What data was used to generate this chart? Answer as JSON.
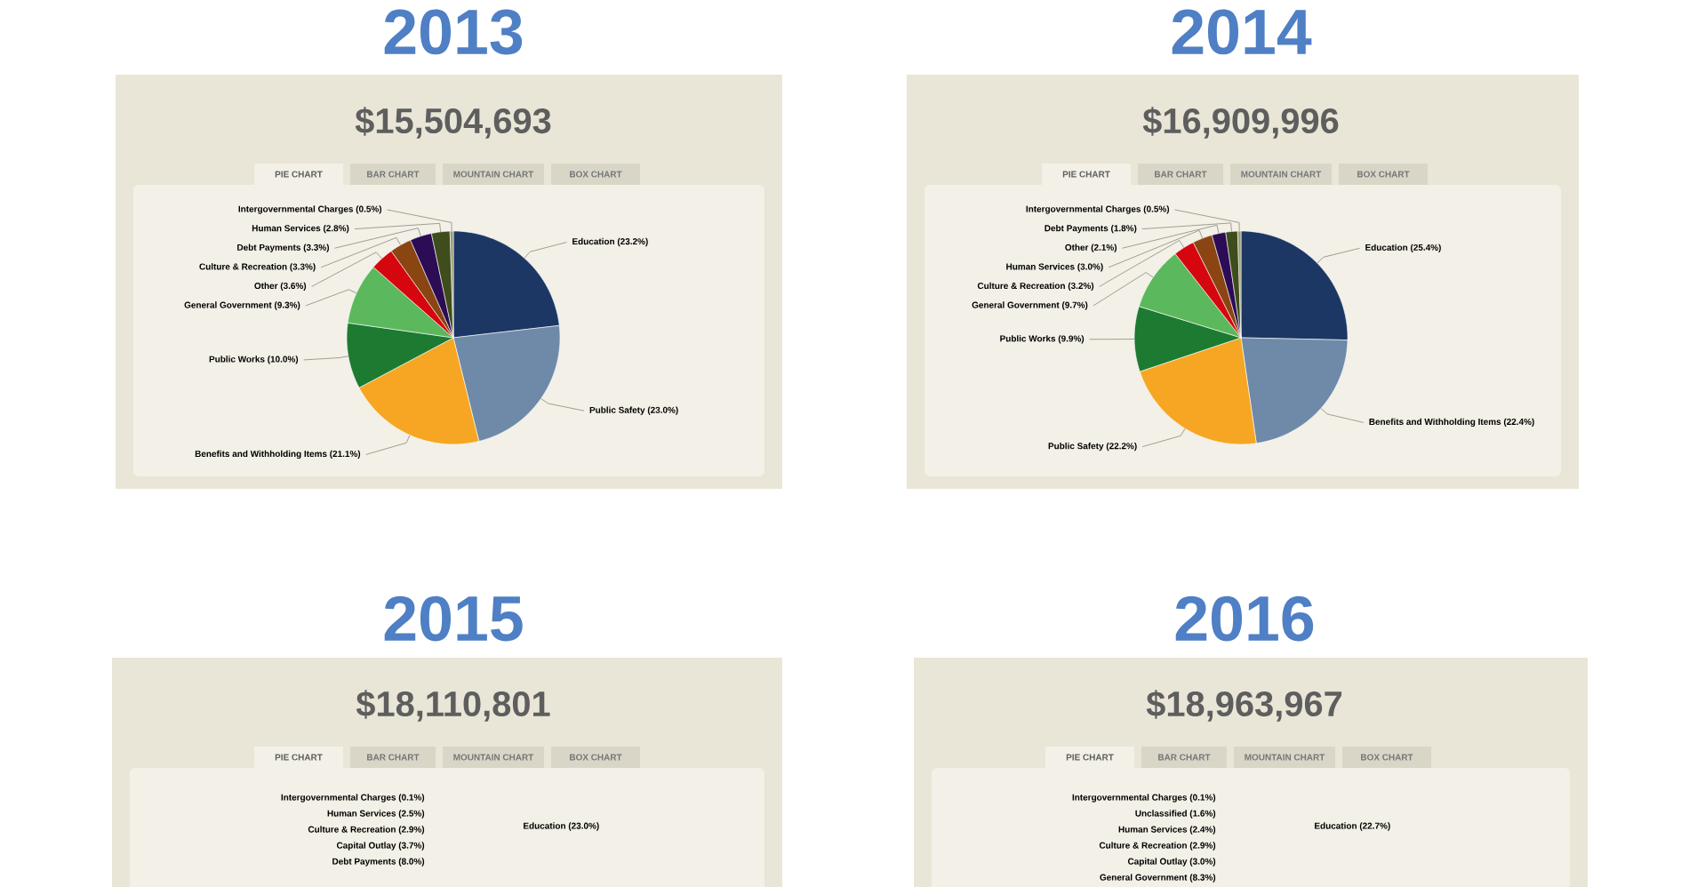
{
  "chart_data": [
    {
      "type": "pie",
      "title": "2013",
      "subtitle": "$15,504,693",
      "categories": [
        "Education (23.2%)",
        "Public Safety (23.0%)",
        "Benefits and Withholding Items (21.1%)",
        "Public Works (10.0%)",
        "General Government (9.3%)",
        "Other (3.6%)",
        "Culture & Recreation (3.3%)",
        "Debt Payments (3.3%)",
        "Human Services (2.8%)",
        "Intergovernmental Charges (0.5%)"
      ],
      "values": [
        23.2,
        23.0,
        21.1,
        10.0,
        9.3,
        3.6,
        3.3,
        3.3,
        2.8,
        0.5
      ],
      "colors": [
        "#1c3764",
        "#6e8aa8",
        "#f6a623",
        "#1d7a31",
        "#5cb85c",
        "#d6060f",
        "#8a4512",
        "#2b0c55",
        "#3e4d1b",
        "#9a9a7a"
      ],
      "annotations": [
        "PIE CHART",
        "BAR CHART",
        "MOUNTAIN CHART",
        "BOX CHART"
      ]
    },
    {
      "type": "pie",
      "title": "2014",
      "subtitle": "$16,909,996",
      "categories": [
        "Education (25.4%)",
        "Benefits and Withholding Items (22.4%)",
        "Public Safety (22.2%)",
        "Public Works (9.9%)",
        "General Government (9.7%)",
        "Culture & Recreation (3.2%)",
        "Human Services (3.0%)",
        "Other (2.1%)",
        "Debt Payments (1.8%)",
        "Intergovernmental Charges (0.5%)"
      ],
      "values": [
        25.4,
        22.4,
        22.2,
        9.9,
        9.7,
        3.2,
        3.0,
        2.1,
        1.8,
        0.5
      ],
      "colors": [
        "#1c3764",
        "#6e8aa8",
        "#f6a623",
        "#1d7a31",
        "#5cb85c",
        "#d6060f",
        "#8a4512",
        "#2b0c55",
        "#3e4d1b",
        "#9a9a7a"
      ],
      "annotations": [
        "PIE CHART",
        "BAR CHART",
        "MOUNTAIN CHART",
        "BOX CHART"
      ]
    },
    {
      "type": "other",
      "title": "2015",
      "subtitle": "$18,110,801",
      "annotations": [
        "PIE CHART",
        "BAR CHART",
        "MOUNTAIN CHART",
        "BOX CHART",
        "Intergovernmental Charges (0.1%)",
        "Human Services (2.5%)",
        "Culture & Recreation (2.9%)",
        "Capital Outlay (3.7%)",
        "Debt Payments (8.0%)",
        "Education (23.0%)"
      ]
    },
    {
      "type": "other",
      "title": "2016",
      "subtitle": "$18,963,967",
      "annotations": [
        "PIE CHART",
        "BAR CHART",
        "MOUNTAIN CHART",
        "BOX CHART",
        "Intergovernmental Charges (0.1%)",
        "Unclassified (1.6%)",
        "Human Services (2.4%)",
        "Culture & Recreation (2.9%)",
        "Capital Outlay (3.0%)",
        "General Government (8.3%)",
        "Education (22.7%)"
      ]
    }
  ]
}
